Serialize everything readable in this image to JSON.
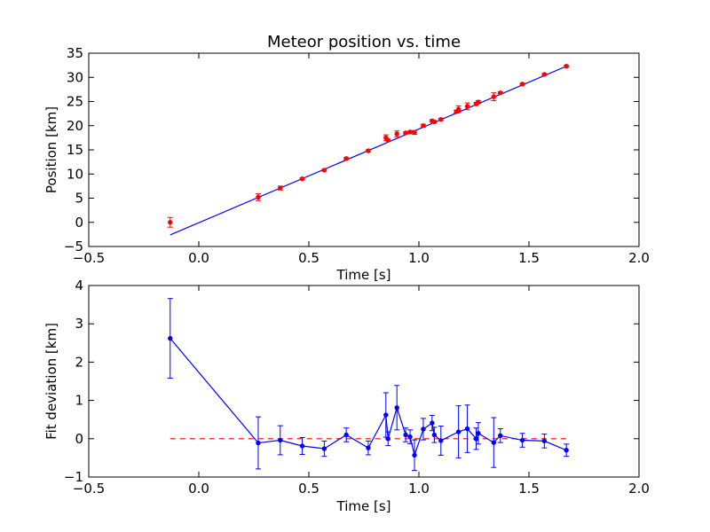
{
  "chart_data": [
    {
      "type": "scatter",
      "title": "Meteor position vs. time",
      "xlabel": "Time [s]",
      "ylabel": "Position [km]",
      "xlim": [
        -0.5,
        2.0
      ],
      "ylim": [
        -5,
        35
      ],
      "xticks": [
        -0.5,
        0.0,
        0.5,
        1.0,
        1.5,
        2.0
      ],
      "xtick_labels": [
        "−0.5",
        "0.0",
        "0.5",
        "1.0",
        "1.5",
        "2.0"
      ],
      "yticks": [
        -5,
        0,
        5,
        10,
        15,
        20,
        25,
        30,
        35
      ],
      "ytick_labels": [
        "−5",
        "0",
        "5",
        "10",
        "15",
        "20",
        "25",
        "30",
        "35"
      ],
      "grid": false,
      "colors": {
        "points": "#ff0000",
        "fit": "#0000ff"
      },
      "points": [
        {
          "x": -0.13,
          "y": 0.0,
          "err": 1.0
        },
        {
          "x": 0.27,
          "y": 5.2,
          "err": 0.7
        },
        {
          "x": 0.37,
          "y": 7.1,
          "err": 0.4
        },
        {
          "x": 0.47,
          "y": 9.0,
          "err": 0.2
        },
        {
          "x": 0.57,
          "y": 10.8,
          "err": 0.2
        },
        {
          "x": 0.67,
          "y": 13.2,
          "err": 0.2
        },
        {
          "x": 0.77,
          "y": 14.8,
          "err": 0.2
        },
        {
          "x": 0.85,
          "y": 17.5,
          "err": 0.6
        },
        {
          "x": 0.86,
          "y": 17.0,
          "err": 0.2
        },
        {
          "x": 0.9,
          "y": 18.3,
          "err": 0.6
        },
        {
          "x": 0.94,
          "y": 18.5,
          "err": 0.2
        },
        {
          "x": 0.96,
          "y": 18.7,
          "err": 0.2
        },
        {
          "x": 0.98,
          "y": 18.6,
          "err": 0.4
        },
        {
          "x": 1.02,
          "y": 20.0,
          "err": 0.3
        },
        {
          "x": 1.06,
          "y": 21.0,
          "err": 0.2
        },
        {
          "x": 1.07,
          "y": 20.8,
          "err": 0.2
        },
        {
          "x": 1.1,
          "y": 21.3,
          "err": 0.2
        },
        {
          "x": 1.17,
          "y": 22.9,
          "err": 0.3
        },
        {
          "x": 1.18,
          "y": 23.4,
          "err": 0.7
        },
        {
          "x": 1.22,
          "y": 24.0,
          "err": 0.7
        },
        {
          "x": 1.26,
          "y": 24.5,
          "err": 0.3
        },
        {
          "x": 1.27,
          "y": 24.9,
          "err": 0.3
        },
        {
          "x": 1.34,
          "y": 26.0,
          "err": 0.8
        },
        {
          "x": 1.37,
          "y": 26.8,
          "err": 0.2
        },
        {
          "x": 1.47,
          "y": 28.6,
          "err": 0.2
        },
        {
          "x": 1.57,
          "y": 30.6,
          "err": 0.2
        },
        {
          "x": 1.67,
          "y": 32.3,
          "err": 0.2
        }
      ],
      "fit_line": {
        "x": [
          -0.13,
          1.67
        ],
        "y": [
          -2.6,
          32.3
        ]
      }
    },
    {
      "type": "line",
      "title": "",
      "xlabel": "Time [s]",
      "ylabel": "Fit deviation [km]",
      "xlim": [
        -0.5,
        2.0
      ],
      "ylim": [
        -1,
        4
      ],
      "xticks": [
        -0.5,
        0.0,
        0.5,
        1.0,
        1.5,
        2.0
      ],
      "xtick_labels": [
        "−0.5",
        "0.0",
        "0.5",
        "1.0",
        "1.5",
        "2.0"
      ],
      "yticks": [
        -1,
        0,
        1,
        2,
        3,
        4
      ],
      "ytick_labels": [
        "−1",
        "0",
        "1",
        "2",
        "3",
        "4"
      ],
      "grid": false,
      "colors": {
        "series": "#0000ff",
        "zero_line": "#ff0000"
      },
      "points": [
        {
          "x": -0.13,
          "y": 2.62,
          "err": 1.04
        },
        {
          "x": 0.27,
          "y": -0.11,
          "err": 0.68
        },
        {
          "x": 0.37,
          "y": -0.04,
          "err": 0.38
        },
        {
          "x": 0.47,
          "y": -0.19,
          "err": 0.22
        },
        {
          "x": 0.57,
          "y": -0.26,
          "err": 0.2
        },
        {
          "x": 0.67,
          "y": 0.1,
          "err": 0.18
        },
        {
          "x": 0.77,
          "y": -0.24,
          "err": 0.18
        },
        {
          "x": 0.85,
          "y": 0.62,
          "err": 0.58
        },
        {
          "x": 0.86,
          "y": 0.0,
          "err": 0.18
        },
        {
          "x": 0.9,
          "y": 0.81,
          "err": 0.58
        },
        {
          "x": 0.94,
          "y": 0.1,
          "err": 0.18
        },
        {
          "x": 0.96,
          "y": 0.05,
          "err": 0.18
        },
        {
          "x": 0.98,
          "y": -0.43,
          "err": 0.4
        },
        {
          "x": 1.02,
          "y": 0.25,
          "err": 0.28
        },
        {
          "x": 1.06,
          "y": 0.41,
          "err": 0.2
        },
        {
          "x": 1.07,
          "y": 0.1,
          "err": 0.2
        },
        {
          "x": 1.1,
          "y": -0.05,
          "err": 0.38
        },
        {
          "x": 1.18,
          "y": 0.18,
          "err": 0.68
        },
        {
          "x": 1.22,
          "y": 0.26,
          "err": 0.62
        },
        {
          "x": 1.26,
          "y": 0.0,
          "err": 0.28
        },
        {
          "x": 1.27,
          "y": 0.14,
          "err": 0.28
        },
        {
          "x": 1.34,
          "y": -0.1,
          "err": 0.65
        },
        {
          "x": 1.37,
          "y": 0.08,
          "err": 0.18
        },
        {
          "x": 1.47,
          "y": -0.04,
          "err": 0.18
        },
        {
          "x": 1.57,
          "y": -0.06,
          "err": 0.18
        },
        {
          "x": 1.67,
          "y": -0.3,
          "err": 0.16
        }
      ],
      "zero_line": {
        "x": [
          -0.13,
          1.67
        ],
        "y": [
          0,
          0
        ],
        "style": "dashed"
      }
    }
  ]
}
